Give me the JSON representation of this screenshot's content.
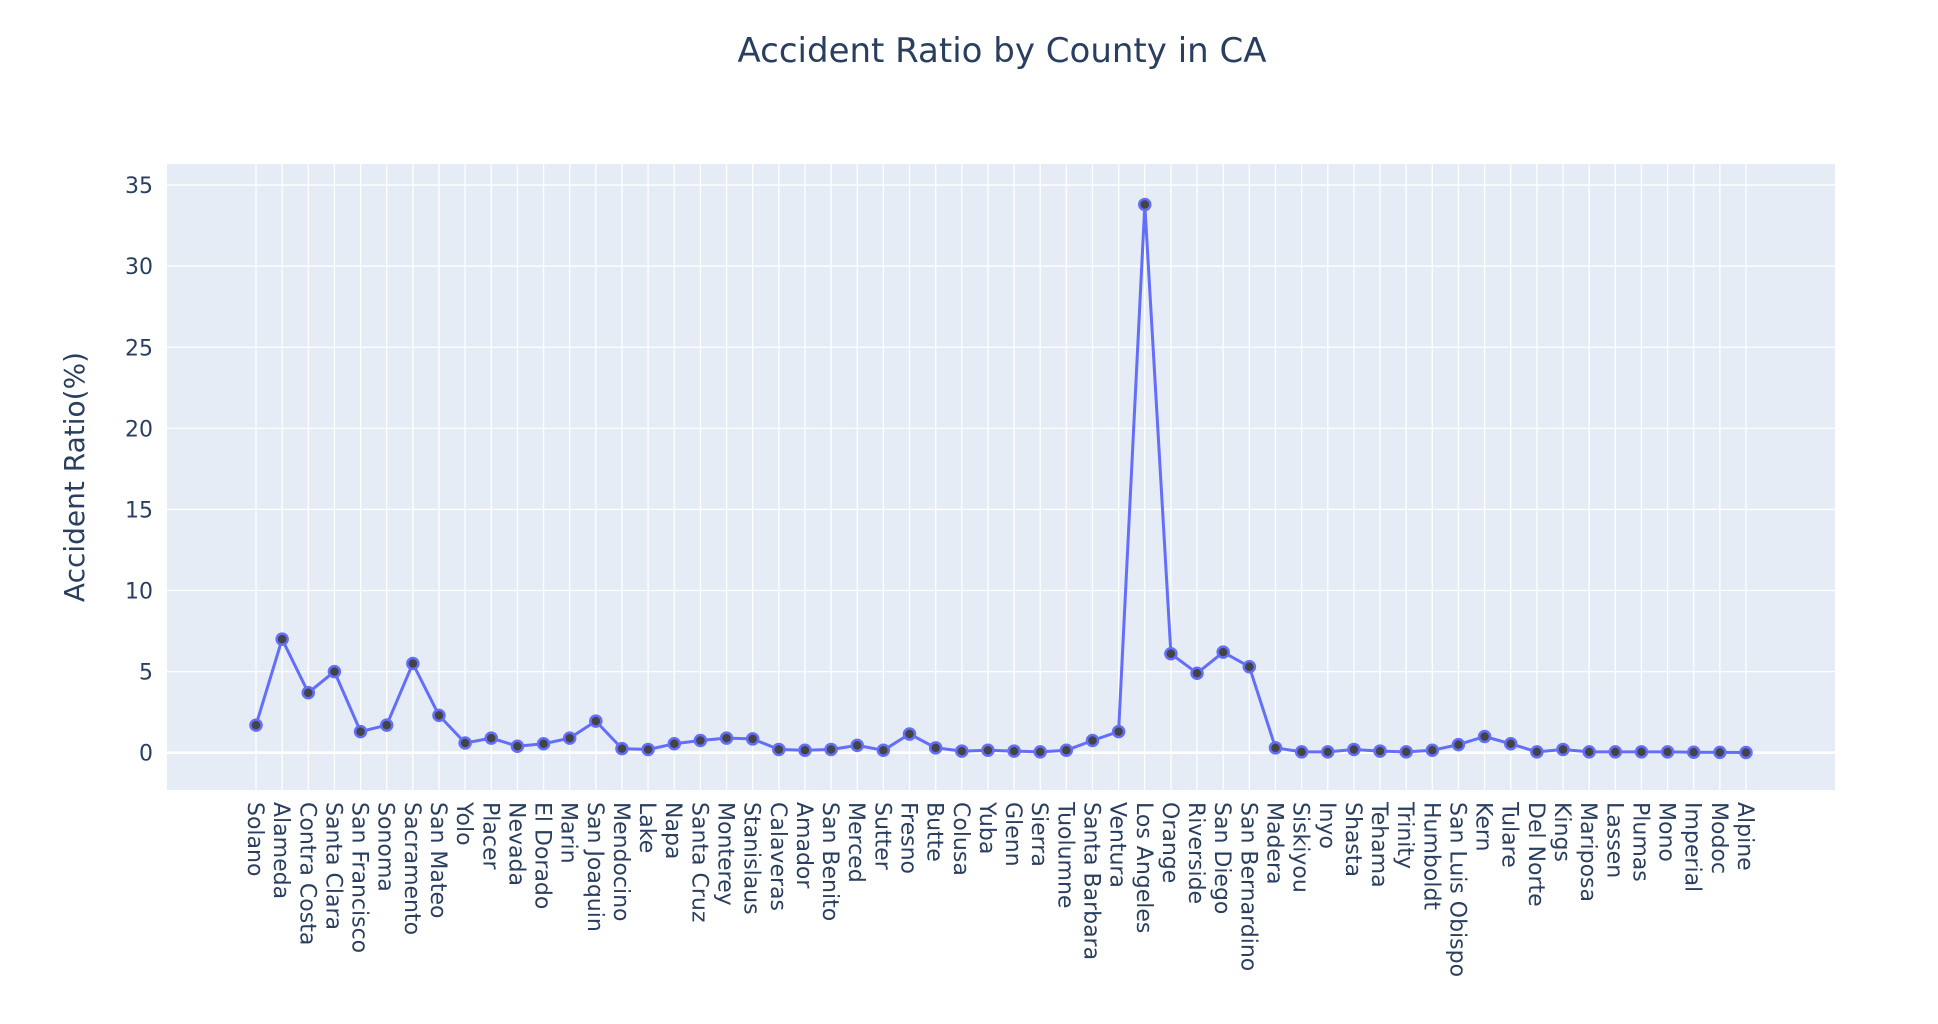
{
  "chart_data": {
    "type": "line",
    "title": "Accident Ratio by County in CA",
    "xlabel": "",
    "ylabel": "Accident Ratio(%)",
    "ylim": [
      -2.3,
      36.3
    ],
    "yticks": [
      0,
      5,
      10,
      15,
      20,
      25,
      30,
      35
    ],
    "grid": true,
    "legend": "none",
    "colors": {
      "line": "#636efa",
      "marker_fill": "#444444",
      "marker_stroke": "#636efa",
      "plot_bg": "#e5ecf6",
      "grid": "#ffffff",
      "text": "#2a3f5f"
    },
    "categories": [
      "Solano",
      "Alameda",
      "Contra Costa",
      "Santa Clara",
      "San Francisco",
      "Sonoma",
      "Sacramento",
      "San Mateo",
      "Yolo",
      "Placer",
      "Nevada",
      "El Dorado",
      "Marin",
      "San Joaquin",
      "Mendocino",
      "Lake",
      "Napa",
      "Santa Cruz",
      "Monterey",
      "Stanislaus",
      "Calaveras",
      "Amador",
      "San Benito",
      "Merced",
      "Sutter",
      "Fresno",
      "Butte",
      "Colusa",
      "Yuba",
      "Glenn",
      "Sierra",
      "Tuolumne",
      "Santa Barbara",
      "Ventura",
      "Los Angeles",
      "Orange",
      "Riverside",
      "San Diego",
      "San Bernardino",
      "Madera",
      "Siskiyou",
      "Inyo",
      "Shasta",
      "Tehama",
      "Trinity",
      "Humboldt",
      "San Luis Obispo",
      "Kern",
      "Tulare",
      "Del Norte",
      "Kings",
      "Mariposa",
      "Lassen",
      "Plumas",
      "Mono",
      "Imperial",
      "Modoc",
      "Alpine"
    ],
    "series": [
      {
        "values": [
          1.7,
          7.0,
          3.7,
          5.0,
          1.3,
          1.7,
          5.5,
          2.3,
          0.6,
          0.9,
          0.4,
          0.55,
          0.9,
          1.95,
          0.25,
          0.2,
          0.55,
          0.75,
          0.9,
          0.85,
          0.2,
          0.15,
          0.2,
          0.45,
          0.15,
          1.15,
          0.3,
          0.1,
          0.15,
          0.1,
          0.05,
          0.15,
          0.75,
          1.3,
          33.8,
          6.1,
          4.9,
          6.2,
          5.3,
          0.3,
          0.05,
          0.05,
          0.2,
          0.1,
          0.05,
          0.15,
          0.5,
          1.0,
          0.55,
          0.05,
          0.2,
          0.05,
          0.05,
          0.05,
          0.05,
          0.03,
          0.02,
          0.01
        ]
      }
    ]
  }
}
